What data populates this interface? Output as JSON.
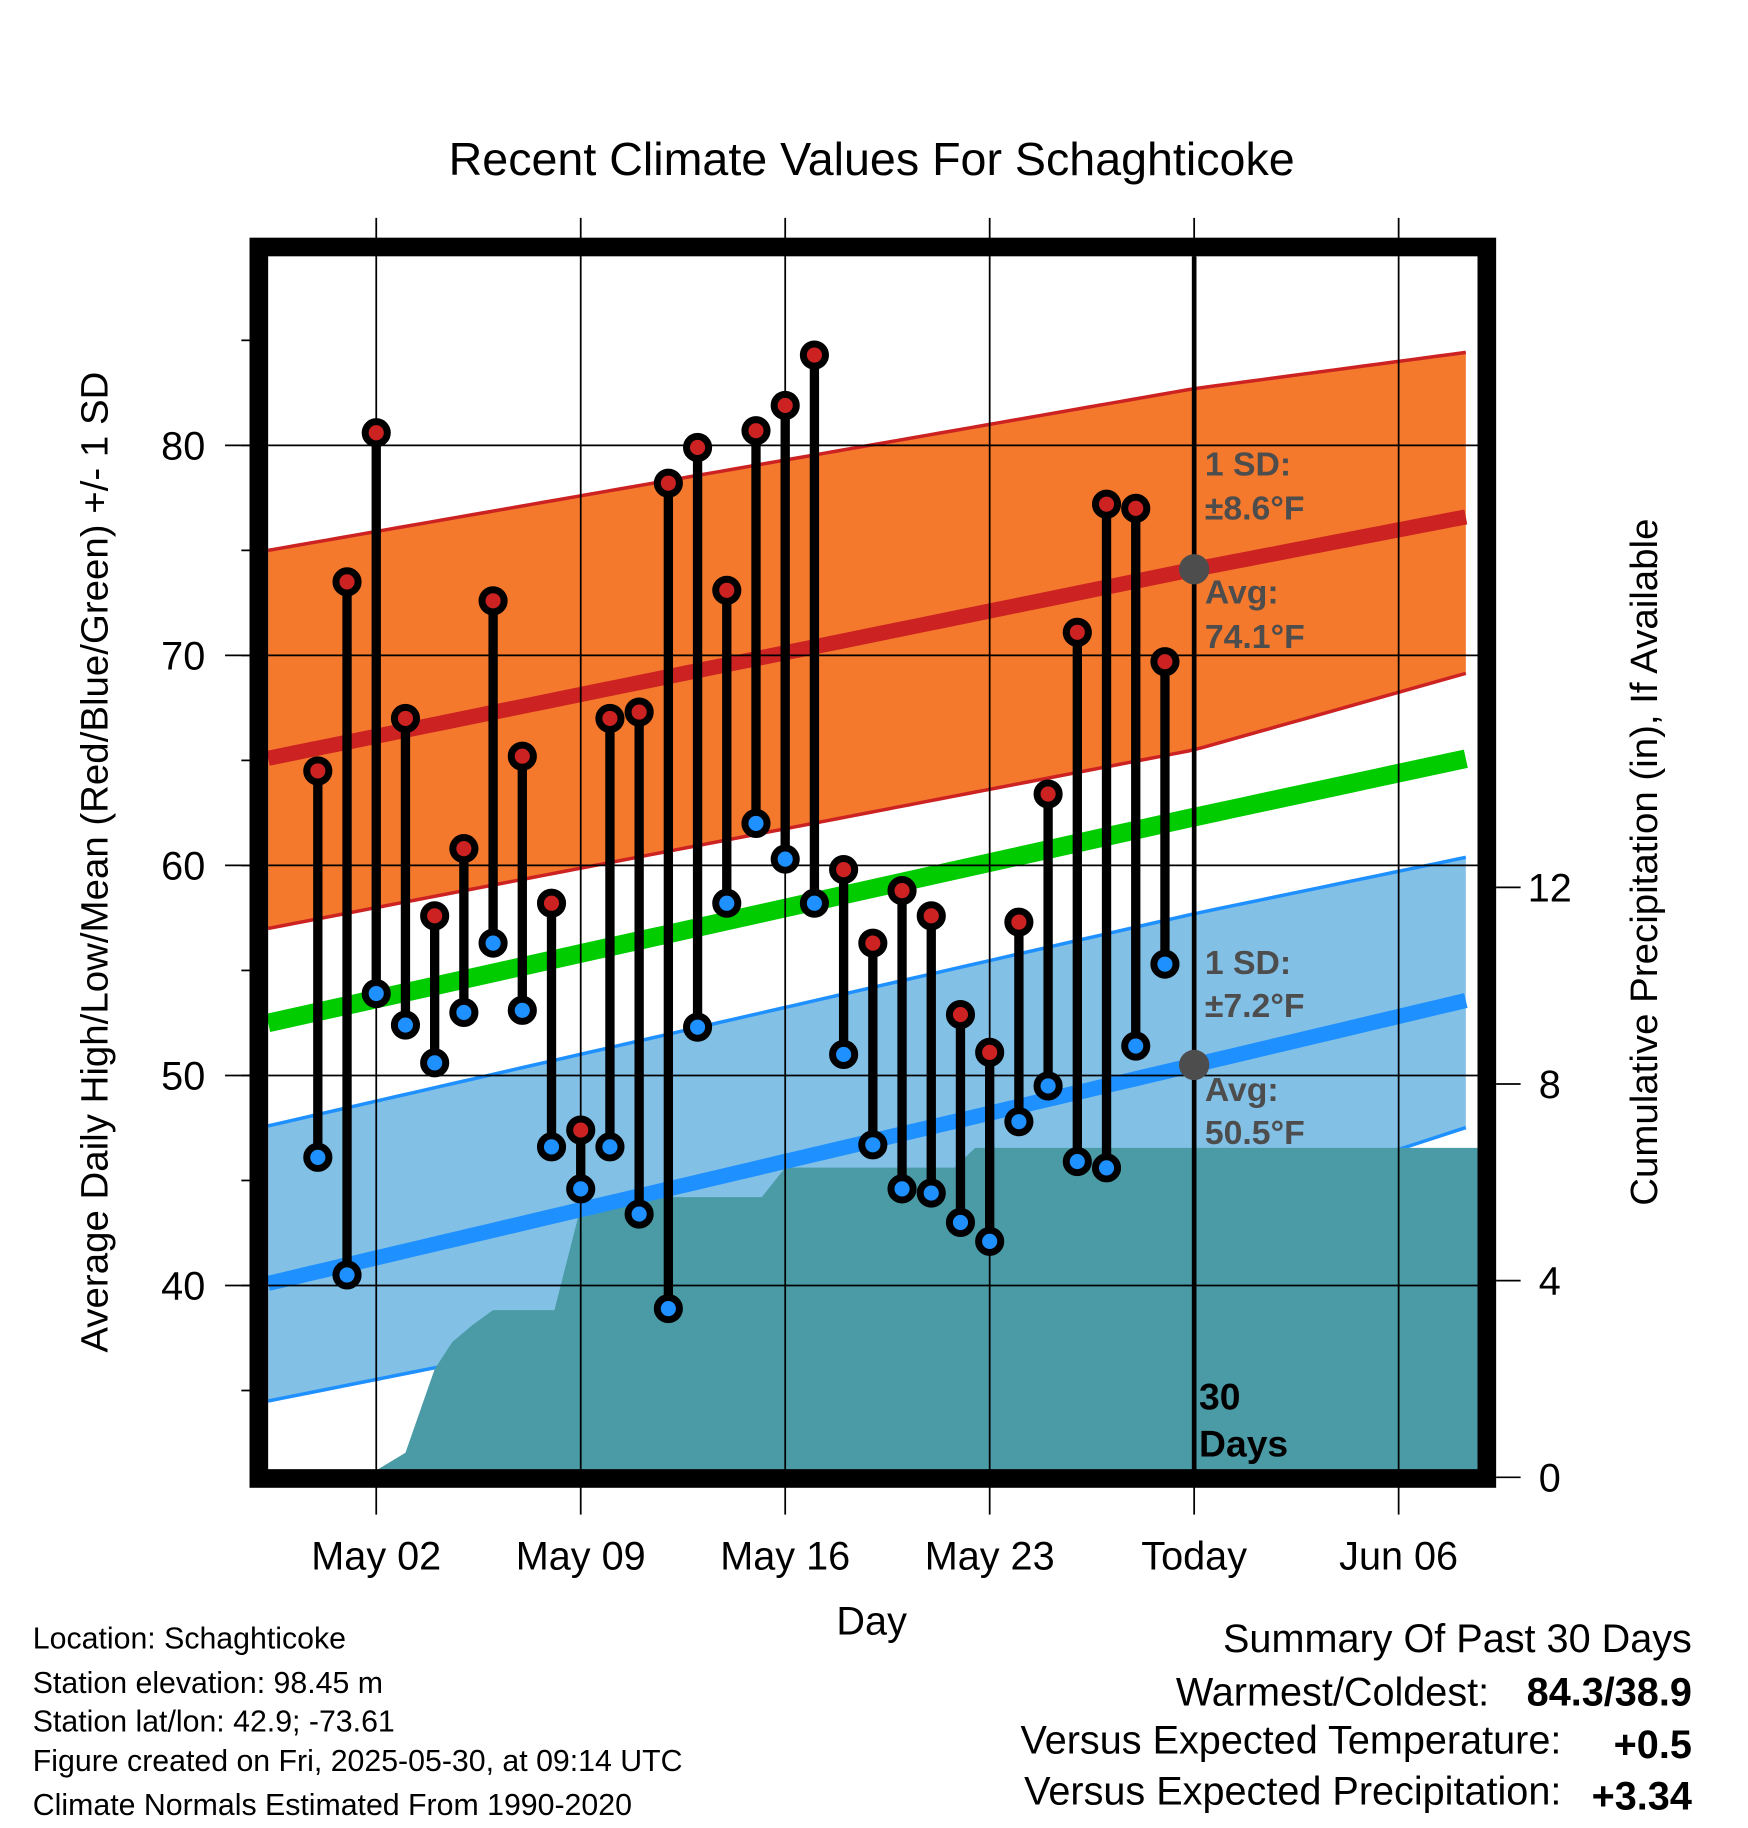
{
  "chart_data": {
    "type": "line",
    "title": "Recent Climate Values For Schaghticoke",
    "xlabel": "Day",
    "ylabel": "Average Daily High/Low/Mean (Red/Blue/Green) +/- 1 SD",
    "y2label": "Cumulative Precipitation (in), If Available",
    "ylim": [
      31.2,
      89.0
    ],
    "y2lim": [
      0,
      20.5
    ],
    "x_range_days": [
      -1.7,
      39.7
    ],
    "x_origin": "Apr 30",
    "yticks": [
      40,
      50,
      60,
      70,
      80
    ],
    "y2ticks": [
      0,
      4,
      8,
      12
    ],
    "xticks": [
      {
        "day": 2,
        "label": "May 02"
      },
      {
        "day": 9,
        "label": "May 09"
      },
      {
        "day": 16,
        "label": "May 16"
      },
      {
        "day": 23,
        "label": "May 23"
      },
      {
        "day": 30,
        "label": "Today"
      },
      {
        "day": 37,
        "label": "Jun 06"
      }
    ],
    "grid": true,
    "days": [
      0,
      1,
      2,
      3,
      4,
      5,
      6,
      7,
      8,
      9,
      10,
      11,
      12,
      13,
      14,
      15,
      16,
      17,
      18,
      19,
      20,
      21,
      22,
      23,
      24,
      25,
      26,
      27,
      28,
      29
    ],
    "series": [
      {
        "name": "Daily High",
        "color": "#cc2222",
        "values": [
          64.5,
          73.5,
          80.6,
          67.0,
          57.6,
          60.8,
          72.6,
          65.2,
          58.2,
          47.4,
          67.0,
          67.3,
          78.2,
          79.9,
          73.1,
          80.7,
          81.9,
          84.3,
          59.8,
          56.3,
          58.8,
          57.6,
          52.9,
          51.1,
          57.3,
          63.4,
          71.1,
          77.2,
          77.0,
          69.7
        ]
      },
      {
        "name": "Daily Low",
        "color": "#1e90ff",
        "values": [
          46.1,
          40.5,
          53.9,
          52.4,
          50.6,
          53.0,
          56.3,
          53.1,
          46.6,
          44.6,
          46.6,
          43.4,
          38.9,
          52.3,
          58.2,
          62.0,
          60.3,
          58.2,
          51.0,
          46.7,
          44.6,
          44.4,
          43.0,
          42.1,
          47.8,
          49.5,
          45.9,
          45.6,
          51.4,
          55.3
        ]
      }
    ],
    "normals": {
      "days": [
        -1.7,
        30,
        39.7
      ],
      "high_avg": [
        65.1,
        74.1,
        76.7
      ],
      "high_upper": [
        75.0,
        82.7,
        84.5
      ],
      "high_lower": [
        57.0,
        65.5,
        69.3
      ],
      "mean": [
        52.5,
        62.3,
        65.2
      ],
      "low_avg": [
        40.1,
        50.5,
        53.7
      ],
      "low_upper": [
        47.6,
        57.7,
        60.5
      ],
      "low_lower": [
        34.5,
        43.3,
        47.7
      ]
    },
    "precip": {
      "color": "#4a9ba6",
      "days": [
        2,
        3,
        4,
        4.6,
        5.3,
        6,
        7,
        8.1,
        9,
        9.8,
        14,
        15.2,
        16,
        21.8,
        22.5,
        39.7
      ],
      "values": [
        0,
        0.5,
        2.2,
        2.75,
        3.1,
        3.4,
        3.4,
        3.4,
        5.5,
        5.7,
        5.7,
        5.7,
        6.3,
        6.3,
        6.7,
        6.7
      ]
    },
    "annotations": {
      "high_sd": "1 SD:",
      "high_sd_value": "±8.6°F",
      "high_avg": "Avg:",
      "high_avg_value": "74.1°F",
      "low_sd": "1 SD:",
      "low_sd_value": "±7.2°F",
      "low_avg": "Avg:",
      "low_avg_value": "50.5°F",
      "window_count": "30",
      "window_unit": "Days"
    }
  },
  "info": {
    "location": "Location: Schaghticoke",
    "elevation": "Station elevation: 98.45 m",
    "latlon": "Station lat/lon: 42.9; -73.61",
    "created": "Figure created on Fri, 2025-05-30, at 09:14 UTC",
    "normals": "Climate Normals Estimated From 1990-2020"
  },
  "summary": {
    "title": "Summary Of Past 30 Days",
    "warm_cold_label": "Warmest/Coldest:",
    "warm_cold_value": "84.3/38.9",
    "temp_label": "Versus Expected Temperature:",
    "temp_value": "+0.5",
    "temp_color": "#d62728",
    "precip_label": "Versus Expected Precipitation:",
    "precip_value": "+3.34",
    "precip_color": "#22bb22"
  }
}
